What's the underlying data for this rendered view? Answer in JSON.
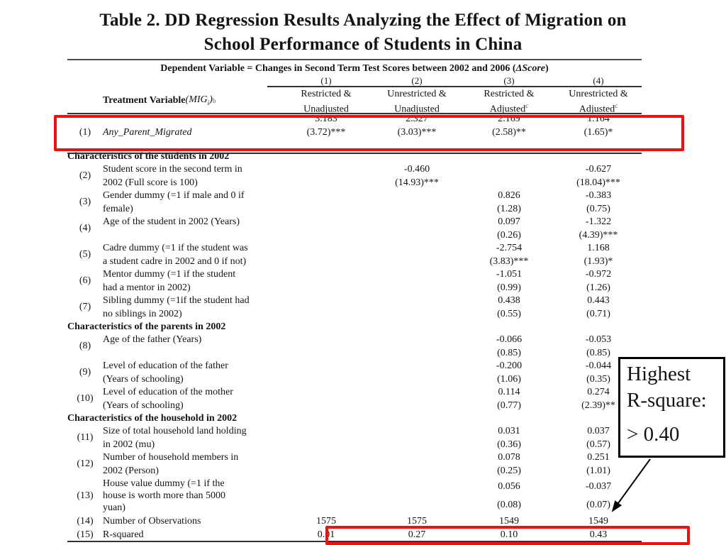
{
  "slide": {
    "title_line1": "Table 2. DD Regression Results Analyzing the Effect of Migration on",
    "title_line2": "School Performance of Students in China"
  },
  "table": {
    "dep_var": {
      "prefix": "Dependent Variable = Changes in Second Term Test Scores between 2002 and 2006 (",
      "italic": "ΔScore",
      "suffix": ")"
    },
    "stub_header": {
      "bold": "Treatment Variable ",
      "italic_open": "(MIG",
      "sub": "i",
      "close": ")",
      "sup": "b"
    },
    "columns": [
      {
        "num": "(1)",
        "line1": "Restricted &",
        "line2": "Unadjusted",
        "sup": ""
      },
      {
        "num": "(2)",
        "line1": "Unrestricted  &",
        "line2": "Unadjusted",
        "sup": ""
      },
      {
        "num": "(3)",
        "line1": "Restricted &",
        "line2": "Adjusted",
        "sup": "c"
      },
      {
        "num": "(4)",
        "line1": "Unrestricted &",
        "line2": "Adjusted",
        "sup": "c"
      }
    ],
    "rows": [
      {
        "type": "data",
        "num": "(1)",
        "italic": true,
        "label_lines": [
          "Any_Parent_Migrated"
        ],
        "cells": [
          [
            "3.183",
            "(3.72)***"
          ],
          [
            "2.327",
            "(3.03)***"
          ],
          [
            "2.169",
            "(2.58)**"
          ],
          [
            "1.164",
            "(1.65)*"
          ]
        ]
      },
      {
        "type": "section",
        "label": "Characteristics of the students in 2002"
      },
      {
        "type": "data",
        "num": "(2)",
        "label_lines": [
          "Student score in the second term in",
          "2002 (Full score is 100)"
        ],
        "cells": [
          null,
          [
            "-0.460",
            "(14.93)***"
          ],
          null,
          [
            "-0.627",
            "(18.04)***"
          ]
        ]
      },
      {
        "type": "data",
        "num": "(3)",
        "label_lines": [
          "Gender dummy (=1 if male and 0 if",
          "female)"
        ],
        "cells": [
          null,
          null,
          [
            "0.826",
            "(1.28)"
          ],
          [
            "-0.383",
            "(0.75)"
          ]
        ]
      },
      {
        "type": "data",
        "num": "(4)",
        "label_lines": [
          "Age of the student in 2002 (Years)"
        ],
        "cells": [
          null,
          null,
          [
            "0.097",
            "(0.26)"
          ],
          [
            "-1.322",
            "(4.39)***"
          ]
        ]
      },
      {
        "type": "data",
        "num": "(5)",
        "label_lines": [
          "Cadre dummy (=1 if the student was",
          "a student cadre in 2002 and 0 if not)"
        ],
        "cells": [
          null,
          null,
          [
            "-2.754",
            "(3.83)***"
          ],
          [
            "1.168",
            "(1.93)*"
          ]
        ]
      },
      {
        "type": "data",
        "num": "(6)",
        "label_lines": [
          "Mentor dummy  (=1 if the student",
          "had a mentor in 2002)"
        ],
        "cells": [
          null,
          null,
          [
            "-1.051",
            "(0.99)"
          ],
          [
            "-0.972",
            "(1.26)"
          ]
        ]
      },
      {
        "type": "data",
        "num": "(7)",
        "label_lines": [
          "Sibling dummy (=1if the student had",
          "no siblings in 2002)"
        ],
        "cells": [
          null,
          null,
          [
            "0.438",
            "(0.55)"
          ],
          [
            "0.443",
            "(0.71)"
          ]
        ]
      },
      {
        "type": "section",
        "label": "Characteristics of the parents in 2002"
      },
      {
        "type": "data",
        "num": "(8)",
        "label_lines": [
          "Age of the father   (Years)"
        ],
        "cells": [
          null,
          null,
          [
            "-0.066",
            "(0.85)"
          ],
          [
            "-0.053",
            "(0.85)"
          ]
        ]
      },
      {
        "type": "data",
        "num": "(9)",
        "label_lines": [
          "Level of education of the father",
          "(Years of schooling)"
        ],
        "cells": [
          null,
          null,
          [
            "-0.200",
            "(1.06)"
          ],
          [
            "-0.044",
            "(0.35)"
          ]
        ]
      },
      {
        "type": "data",
        "num": "(10)",
        "label_lines": [
          "Level of education of the mother",
          "(Years of schooling)"
        ],
        "cells": [
          null,
          null,
          [
            "0.114",
            "(0.77)"
          ],
          [
            "0.274",
            "(2.39)**"
          ]
        ]
      },
      {
        "type": "section",
        "label": "Characteristics of the household in 2002"
      },
      {
        "type": "data",
        "num": "(11)",
        "label_lines": [
          "Size of total household land holding",
          "in 2002 (mu)"
        ],
        "cells": [
          null,
          null,
          [
            "0.031",
            "(0.36)"
          ],
          [
            "0.037",
            "(0.57)"
          ]
        ]
      },
      {
        "type": "data",
        "num": "(12)",
        "label_lines": [
          "Number of household members in",
          "2002 (Person)"
        ],
        "cells": [
          null,
          null,
          [
            "0.078",
            "(0.25)"
          ],
          [
            "0.251",
            "(1.01)"
          ]
        ]
      },
      {
        "type": "data",
        "num": "(13)",
        "label_lines": [
          "House value dummy (=1 if the",
          "house is worth more than 5000",
          "yuan)"
        ],
        "cells": [
          null,
          null,
          [
            "0.056",
            "(0.08)"
          ],
          [
            "-0.037",
            "(0.07)"
          ]
        ]
      },
      {
        "type": "data",
        "num": "(14)",
        "label_lines": [
          "Number of Observations"
        ],
        "cells": [
          [
            "1575"
          ],
          [
            "1575"
          ],
          [
            "1549"
          ],
          [
            "1549"
          ]
        ]
      },
      {
        "type": "data",
        "num": "(15)",
        "label_lines": [
          "R-squared"
        ],
        "cells": [
          [
            "0.01"
          ],
          [
            "0.27"
          ],
          [
            "0.10"
          ],
          [
            "0.43"
          ]
        ]
      }
    ]
  },
  "callout": {
    "line1": "Highest",
    "line2": "R-square:",
    "line3": "> 0.40"
  },
  "colors": {
    "highlight_red": "#ee1111",
    "callout_border": "#000000"
  }
}
